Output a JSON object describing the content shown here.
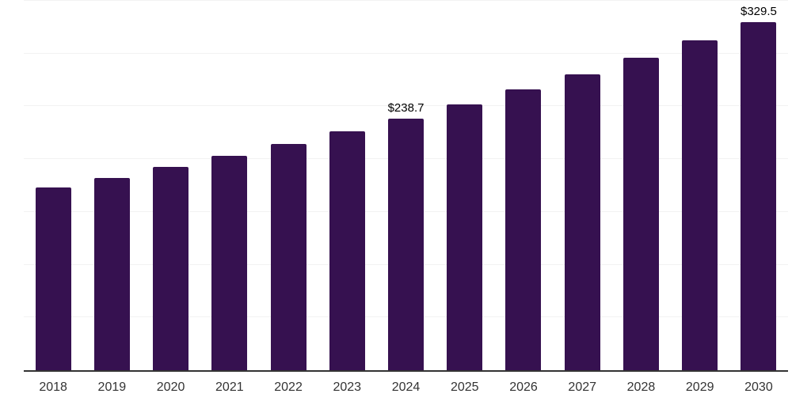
{
  "chart_data": {
    "type": "bar",
    "title": "",
    "xlabel": "",
    "ylabel": "",
    "categories": [
      "2018",
      "2019",
      "2020",
      "2021",
      "2022",
      "2023",
      "2024",
      "2025",
      "2026",
      "2027",
      "2028",
      "2029",
      "2030"
    ],
    "values": [
      172.9,
      182.5,
      192.5,
      203.2,
      214.4,
      226.2,
      238.7,
      251.9,
      265.8,
      280.4,
      295.9,
      312.3,
      329.5
    ],
    "data_labels": {
      "2024": "$238.7",
      "2030": "$329.5"
    },
    "ylim": [
      0,
      350
    ],
    "gridline_step": 50,
    "grid": "horizontal-only",
    "y_tick_labels_visible": false,
    "legend": "none",
    "colors": {
      "bar": "#361150",
      "grid": "#f2f2f2",
      "axis": "#333333",
      "tick_label": "#333333",
      "data_label": "#000000",
      "background": "#ffffff"
    }
  }
}
